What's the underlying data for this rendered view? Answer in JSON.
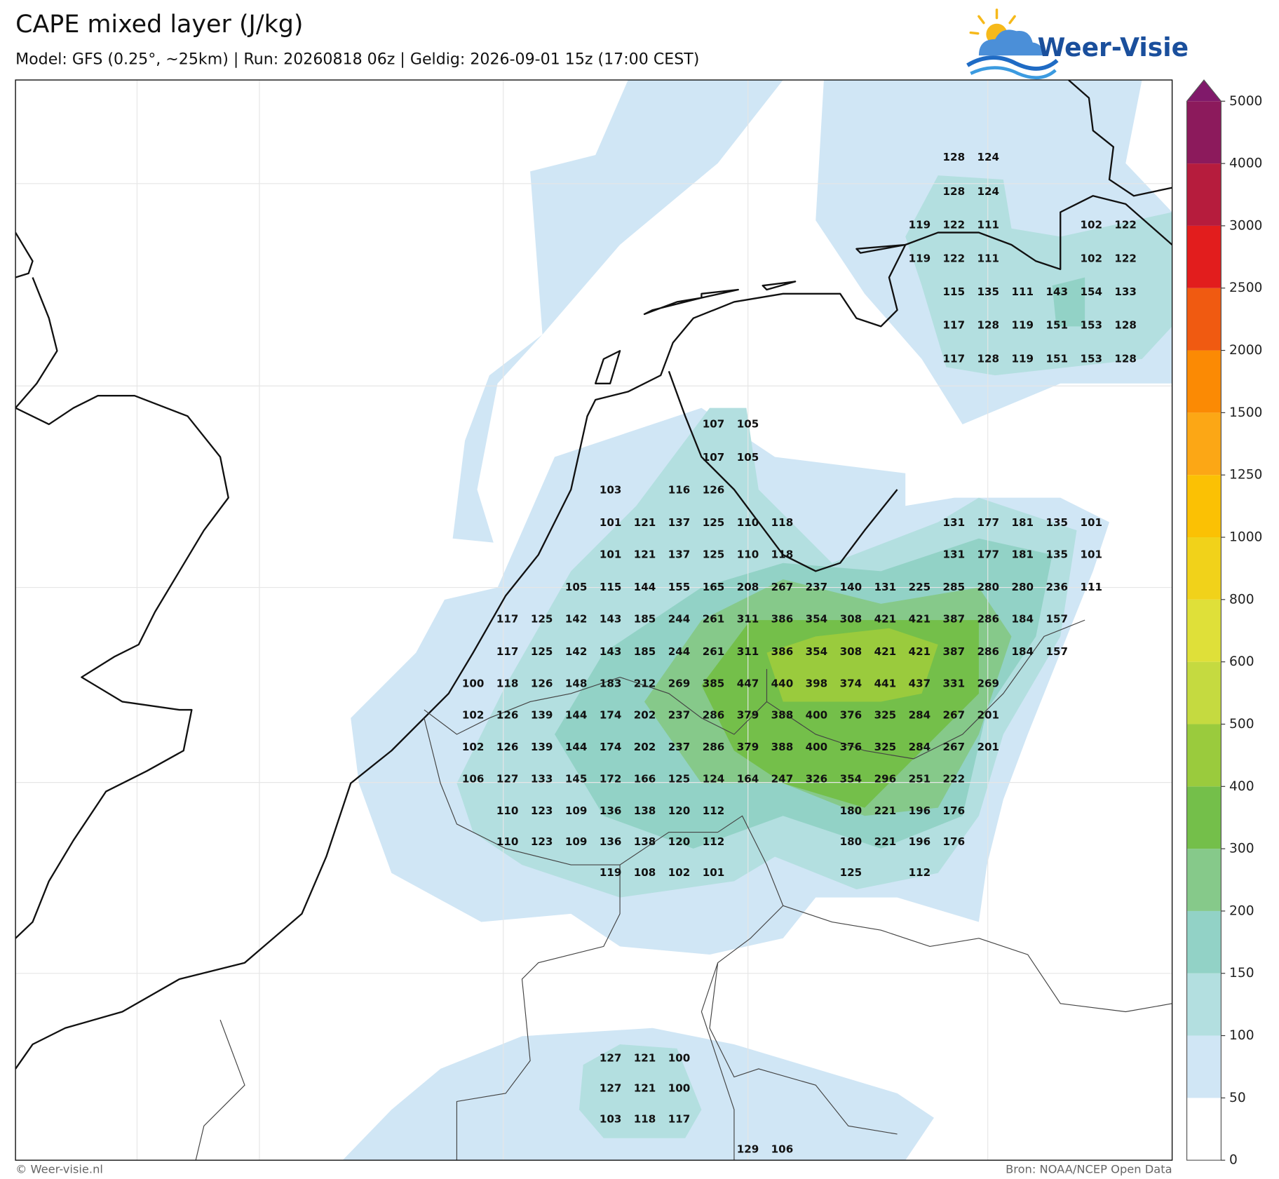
{
  "header": {
    "title": "CAPE mixed layer (J/kg)",
    "subtitle": "Model: GFS (0.25°, ~25km)  |  Run: 20260818 06z  |  Geldig: 2026-09-01 15z (17:00 CEST)"
  },
  "logo": {
    "text": "Weer-Visie"
  },
  "footer": {
    "copyright": "© Weer-visie.nl",
    "source": "Bron: NOAA/NCEP Open Data"
  },
  "colorbar": {
    "ticks": [
      0,
      50,
      100,
      150,
      200,
      300,
      400,
      500,
      600,
      800,
      1000,
      1250,
      1500,
      2000,
      2500,
      3000,
      4000,
      5000
    ],
    "colors": [
      "#ffffff",
      "#d0e6f5",
      "#b3dfe0",
      "#92d2c6",
      "#86c98a",
      "#74bf4a",
      "#9acb3d",
      "#c5da40",
      "#dfe039",
      "#f1d21a",
      "#fbc104",
      "#fca715",
      "#fb8a04",
      "#f05a11",
      "#e21d1d",
      "#b61c3d",
      "#8c1a5c"
    ],
    "extend_color": "#80196a"
  },
  "map": {
    "value_labels": [
      [
        null,
        null,
        null,
        null,
        null,
        null,
        null,
        null,
        null,
        null,
        null,
        null,
        null,
        null,
        128,
        124,
        null,
        null,
        null,
        null
      ],
      [
        null,
        null,
        null,
        null,
        null,
        null,
        null,
        null,
        null,
        null,
        null,
        null,
        null,
        null,
        128,
        124,
        null,
        null,
        null,
        null
      ],
      [
        null,
        null,
        null,
        null,
        null,
        null,
        null,
        null,
        null,
        null,
        null,
        null,
        null,
        119,
        122,
        111,
        null,
        null,
        102,
        122
      ],
      [
        null,
        null,
        null,
        null,
        null,
        null,
        null,
        null,
        null,
        null,
        null,
        null,
        null,
        119,
        122,
        111,
        null,
        null,
        102,
        122
      ],
      [
        null,
        null,
        null,
        null,
        null,
        null,
        null,
        null,
        null,
        null,
        null,
        null,
        null,
        null,
        115,
        135,
        111,
        143,
        154,
        133
      ],
      [
        null,
        null,
        null,
        null,
        null,
        null,
        null,
        null,
        null,
        null,
        null,
        null,
        null,
        null,
        117,
        128,
        119,
        151,
        153,
        128
      ],
      [
        null,
        null,
        null,
        null,
        null,
        null,
        null,
        null,
        null,
        null,
        null,
        null,
        null,
        null,
        117,
        128,
        119,
        151,
        153,
        128
      ],
      [
        null,
        null,
        null,
        null,
        null,
        null,
        null,
        107,
        105,
        null,
        null,
        null,
        null,
        null,
        null,
        null,
        null,
        null,
        null,
        null
      ],
      [
        null,
        null,
        null,
        null,
        null,
        null,
        null,
        107,
        105,
        null,
        null,
        null,
        null,
        null,
        null,
        null,
        null,
        null,
        null,
        null
      ],
      [
        null,
        null,
        null,
        null,
        103,
        null,
        116,
        126,
        null,
        null,
        null,
        null,
        null,
        null,
        null,
        null,
        null,
        null,
        null,
        null
      ],
      [
        null,
        null,
        null,
        null,
        101,
        121,
        137,
        125,
        110,
        118,
        null,
        null,
        null,
        null,
        131,
        177,
        181,
        135,
        101,
        null
      ],
      [
        null,
        null,
        null,
        null,
        101,
        121,
        137,
        125,
        110,
        118,
        null,
        null,
        null,
        null,
        131,
        177,
        181,
        135,
        101,
        null
      ],
      [
        null,
        null,
        null,
        105,
        115,
        144,
        155,
        165,
        208,
        267,
        237,
        140,
        131,
        225,
        285,
        280,
        280,
        236,
        111,
        null
      ],
      [
        null,
        117,
        125,
        142,
        143,
        185,
        244,
        261,
        311,
        386,
        354,
        308,
        421,
        421,
        387,
        286,
        184,
        157,
        null,
        null
      ],
      [
        null,
        117,
        125,
        142,
        143,
        185,
        244,
        261,
        311,
        386,
        354,
        308,
        421,
        421,
        387,
        286,
        184,
        157,
        null,
        null
      ],
      [
        100,
        118,
        126,
        148,
        183,
        212,
        269,
        385,
        447,
        440,
        398,
        374,
        441,
        437,
        331,
        269,
        null,
        null,
        null,
        null
      ],
      [
        102,
        126,
        139,
        144,
        174,
        202,
        237,
        286,
        379,
        388,
        400,
        376,
        325,
        284,
        267,
        201,
        null,
        null,
        null,
        null
      ],
      [
        102,
        126,
        139,
        144,
        174,
        202,
        237,
        286,
        379,
        388,
        400,
        376,
        325,
        284,
        267,
        201,
        null,
        null,
        null,
        null
      ],
      [
        106,
        127,
        133,
        145,
        172,
        166,
        125,
        124,
        164,
        247,
        326,
        354,
        296,
        251,
        222,
        null,
        null,
        null,
        null,
        null
      ],
      [
        null,
        110,
        123,
        109,
        136,
        138,
        120,
        112,
        null,
        null,
        null,
        180,
        221,
        196,
        176,
        null,
        null,
        null,
        null,
        null
      ],
      [
        null,
        110,
        123,
        109,
        136,
        138,
        120,
        112,
        null,
        null,
        null,
        180,
        221,
        196,
        176,
        null,
        null,
        null,
        null,
        null
      ],
      [
        null,
        null,
        null,
        null,
        119,
        108,
        102,
        101,
        null,
        null,
        null,
        125,
        null,
        112,
        null,
        null,
        null,
        null,
        null,
        null
      ],
      [
        null,
        null,
        null,
        null,
        127,
        121,
        100,
        null,
        null,
        null,
        null,
        null,
        null,
        null,
        null,
        null,
        null,
        null,
        null,
        null
      ],
      [
        null,
        null,
        null,
        null,
        127,
        121,
        100,
        null,
        null,
        null,
        null,
        null,
        null,
        null,
        null,
        null,
        null,
        null,
        null,
        null
      ],
      [
        null,
        null,
        null,
        null,
        103,
        118,
        117,
        null,
        null,
        null,
        null,
        null,
        null,
        null,
        null,
        null,
        null,
        null,
        null,
        null
      ],
      [
        null,
        null,
        null,
        null,
        null,
        null,
        null,
        null,
        129,
        106,
        null,
        null,
        null,
        null,
        null,
        null,
        null,
        null,
        null,
        null
      ]
    ]
  }
}
